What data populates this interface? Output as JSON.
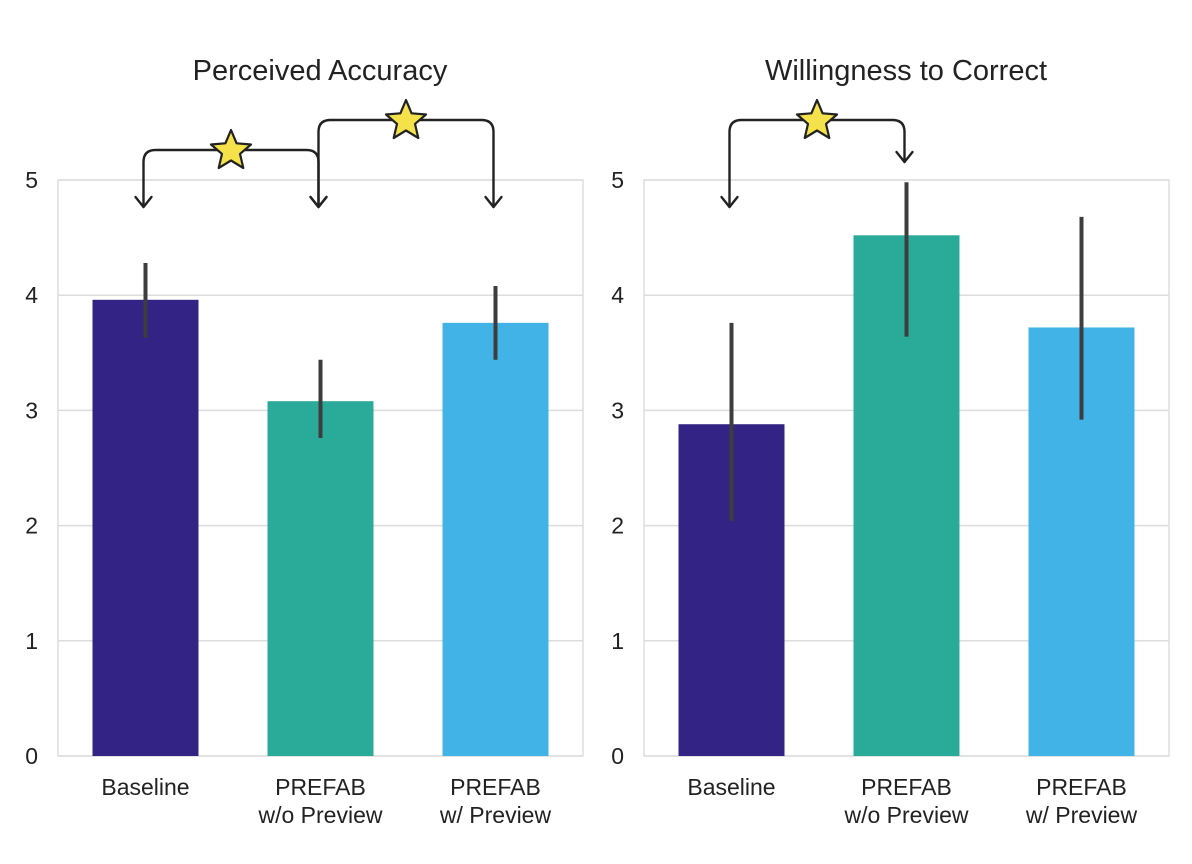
{
  "chart_data": [
    {
      "type": "bar",
      "title": "Perceived Accuracy",
      "categories": [
        "Baseline",
        "PREFAB\nw/o Preview",
        "PREFAB\nw/ Preview"
      ],
      "values": [
        3.96,
        3.08,
        3.76
      ],
      "error_low": [
        3.63,
        2.76,
        3.44
      ],
      "error_high": [
        4.28,
        3.44,
        4.08
      ],
      "colors": [
        "#332385",
        "#2aab9a",
        "#41b3e6"
      ],
      "ylim": [
        0,
        5
      ],
      "yticks": [
        0,
        1,
        2,
        3,
        4,
        5
      ],
      "significance": [
        {
          "from": 0,
          "to": 1,
          "level": 1
        },
        {
          "from": 1,
          "to": 2,
          "level": 2
        }
      ]
    },
    {
      "type": "bar",
      "title": "Willingness to Correct",
      "categories": [
        "Baseline",
        "PREFAB\nw/o Preview",
        "PREFAB\nw/ Preview"
      ],
      "values": [
        2.88,
        4.52,
        3.72
      ],
      "error_low": [
        2.04,
        3.64,
        2.92
      ],
      "error_high": [
        3.76,
        4.98,
        4.68
      ],
      "colors": [
        "#332385",
        "#2aab9a",
        "#41b3e6"
      ],
      "ylim": [
        0,
        5
      ],
      "yticks": [
        0,
        1,
        2,
        3,
        4,
        5
      ],
      "significance": [
        {
          "from": 0,
          "to": 1,
          "level": 2
        }
      ]
    }
  ]
}
